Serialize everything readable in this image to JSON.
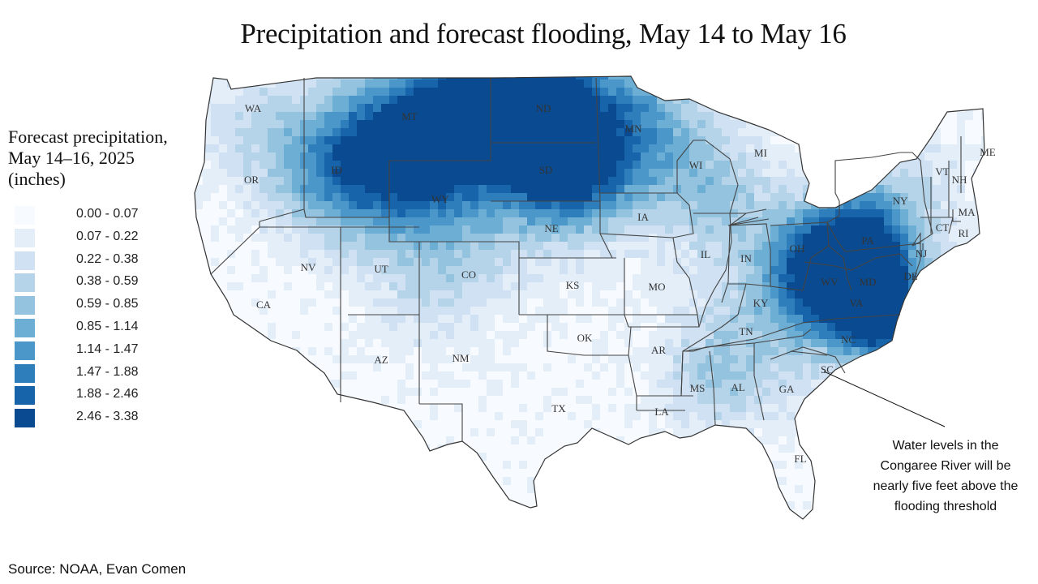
{
  "title": "Precipitation and forecast flooding, May 14 to May 16",
  "legend": {
    "title_lines": [
      "Forecast precipitation,",
      "May 14–16, 2025",
      "(inches)"
    ],
    "bins": [
      {
        "label": "0.00 - 0.07",
        "color": "#f7fbff"
      },
      {
        "label": "0.07 - 0.22",
        "color": "#e3eef9"
      },
      {
        "label": "0.22 - 0.38",
        "color": "#cfe1f2"
      },
      {
        "label": "0.38 - 0.59",
        "color": "#b5d4e9"
      },
      {
        "label": "0.59 - 0.85",
        "color": "#93c3df"
      },
      {
        "label": "0.85 - 1.14",
        "color": "#6daed5"
      },
      {
        "label": "1.14 - 1.47",
        "color": "#4b97c9"
      },
      {
        "label": "1.47 - 1.88",
        "color": "#2f7ebc"
      },
      {
        "label": "1.88 - 2.46",
        "color": "#1864aa"
      },
      {
        "label": "2.46 - 3.38",
        "color": "#0a4a90"
      }
    ]
  },
  "states": {
    "WA": "WA",
    "OR": "OR",
    "CA": "CA",
    "ID": "ID",
    "NV": "NV",
    "MT": "MT",
    "WY": "WY",
    "UT": "UT",
    "AZ": "AZ",
    "CO": "CO",
    "NM": "NM",
    "ND": "ND",
    "SD": "SD",
    "NE": "NE",
    "KS": "KS",
    "OK": "OK",
    "TX": "TX",
    "MN": "MN",
    "IA": "IA",
    "MO": "MO",
    "AR": "AR",
    "LA": "LA",
    "WI": "WI",
    "IL": "IL",
    "MS": "MS",
    "MI": "MI",
    "IN": "IN",
    "KY": "KY",
    "TN": "TN",
    "AL": "AL",
    "OH": "OH",
    "WV": "WV",
    "VA": "VA",
    "NC": "NC",
    "SC": "SC",
    "GA": "GA",
    "FL": "FL",
    "PA": "PA",
    "NY": "NY",
    "MD": "MD",
    "DE": "DE",
    "NJ": "NJ",
    "CT": "CT",
    "RI": "RI",
    "MA": "MA",
    "VT": "VT",
    "NH": "NH",
    "ME": "ME"
  },
  "annotation": {
    "lines": [
      "Water levels in the",
      "Congaree River will be",
      "nearly five feet above the",
      "flooding threshold"
    ]
  },
  "source": "Source: NOAA, Evan Comen"
}
